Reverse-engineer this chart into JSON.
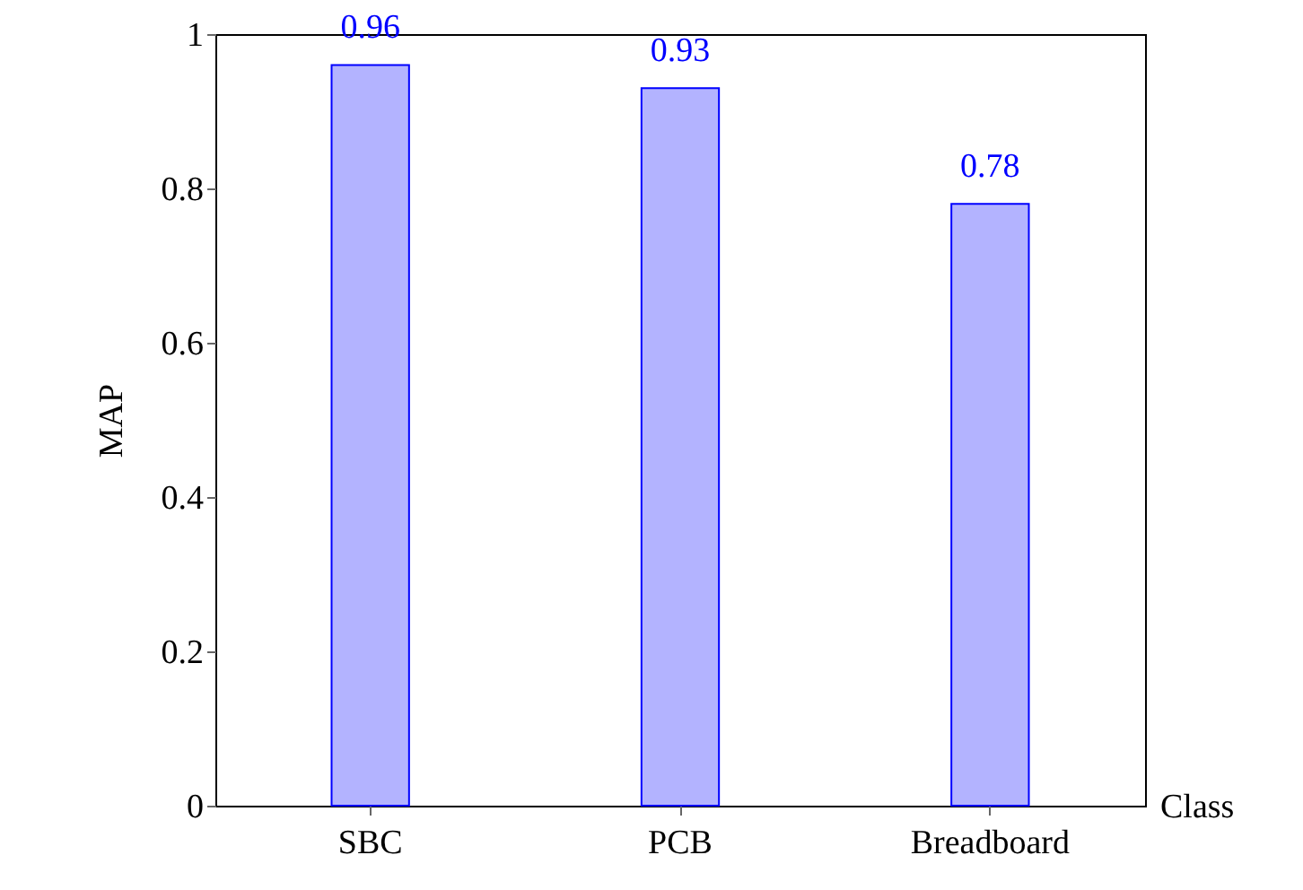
{
  "chart_data": {
    "type": "bar",
    "xlabel": "Class",
    "ylabel": "MAP",
    "categories": [
      "SBC",
      "PCB",
      "Breadboard"
    ],
    "values": [
      0.96,
      0.93,
      0.78
    ],
    "color": "#b3b3ff",
    "ylim": [
      0,
      1
    ],
    "yticks": [
      0,
      0.2,
      0.4,
      0.6,
      0.8,
      1
    ],
    "data_labels": true
  }
}
